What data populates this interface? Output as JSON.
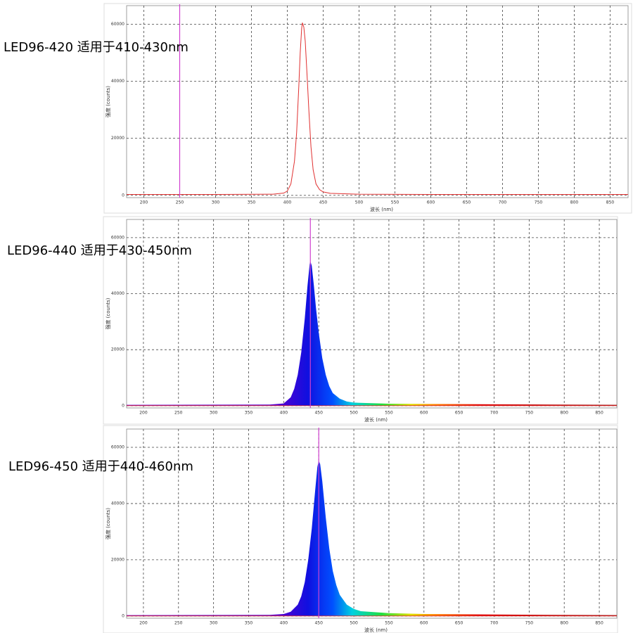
{
  "chart_data": [
    {
      "type": "line",
      "title": "LED96-420 适用于410-430nm",
      "xlabel": "波长 (nm)",
      "ylabel": "强度 (counts)",
      "x": [
        176,
        300,
        380,
        395,
        400,
        405,
        410,
        413,
        416,
        418,
        420,
        421,
        423,
        425,
        428,
        430,
        433,
        436,
        440,
        445,
        450,
        460,
        500,
        600,
        700,
        875
      ],
      "series": [
        {
          "color": "#e03030",
          "values": [
            300,
            300,
            400,
            800,
            1500,
            4000,
            12000,
            22000,
            38000,
            50000,
            58500,
            60500,
            59000,
            54000,
            40000,
            30000,
            17000,
            9000,
            4000,
            2000,
            1200,
            700,
            400,
            300,
            300,
            300
          ]
        }
      ],
      "cursor_x": 250,
      "xlim": [
        176,
        875
      ],
      "ylim": [
        -800,
        66500
      ],
      "xticks": [
        200,
        250,
        300,
        350,
        400,
        450,
        500,
        550,
        600,
        650,
        700,
        750,
        800,
        850
      ],
      "yticks": [
        0,
        20000,
        40000,
        60000
      ],
      "grid": true
    },
    {
      "type": "area",
      "title": "LED96-440 适用于430-450nm",
      "xlabel": "波长 (nm)",
      "ylabel": "强度 (counts)",
      "x": [
        176,
        380,
        400,
        410,
        415,
        420,
        425,
        430,
        434,
        437,
        438,
        440,
        443,
        446,
        450,
        455,
        460,
        465,
        470,
        480,
        490,
        500,
        550,
        600,
        700,
        780,
        875
      ],
      "series": [
        {
          "values": [
            300,
            400,
            800,
            3000,
            6000,
            11000,
            19000,
            31000,
            43000,
            50500,
            51600,
            50000,
            43000,
            35000,
            26000,
            17000,
            11000,
            7000,
            4500,
            2500,
            1500,
            1100,
            700,
            600,
            500,
            400,
            300
          ]
        }
      ],
      "cursor_x": 438,
      "xlim": [
        176,
        875
      ],
      "ylim": [
        -800,
        66500
      ],
      "xticks": [
        200,
        250,
        300,
        350,
        400,
        450,
        500,
        550,
        600,
        650,
        700,
        750,
        800,
        850
      ],
      "yticks": [
        0,
        20000,
        40000,
        60000
      ],
      "grid": true
    },
    {
      "type": "area",
      "title": "LED96-450 适用于440-460nm",
      "xlabel": "波长 (nm)",
      "ylabel": "强度 (counts)",
      "x": [
        176,
        380,
        400,
        410,
        420,
        425,
        430,
        435,
        440,
        445,
        448,
        450,
        452,
        455,
        460,
        465,
        470,
        475,
        480,
        490,
        500,
        510,
        550,
        600,
        700,
        780,
        875
      ],
      "series": [
        {
          "values": [
            300,
            400,
            700,
            1500,
            4000,
            7000,
            12000,
            20000,
            31000,
            45000,
            53000,
            55300,
            54000,
            48000,
            35000,
            24000,
            16000,
            11000,
            7500,
            4000,
            2500,
            1700,
            1000,
            700,
            500,
            400,
            300
          ]
        }
      ],
      "cursor_x": 450,
      "xlim": [
        176,
        875
      ],
      "ylim": [
        -800,
        66500
      ],
      "xticks": [
        200,
        250,
        300,
        350,
        400,
        450,
        500,
        550,
        600,
        650,
        700,
        750,
        800,
        850
      ],
      "yticks": [
        0,
        20000,
        40000,
        60000
      ],
      "grid": true
    }
  ]
}
